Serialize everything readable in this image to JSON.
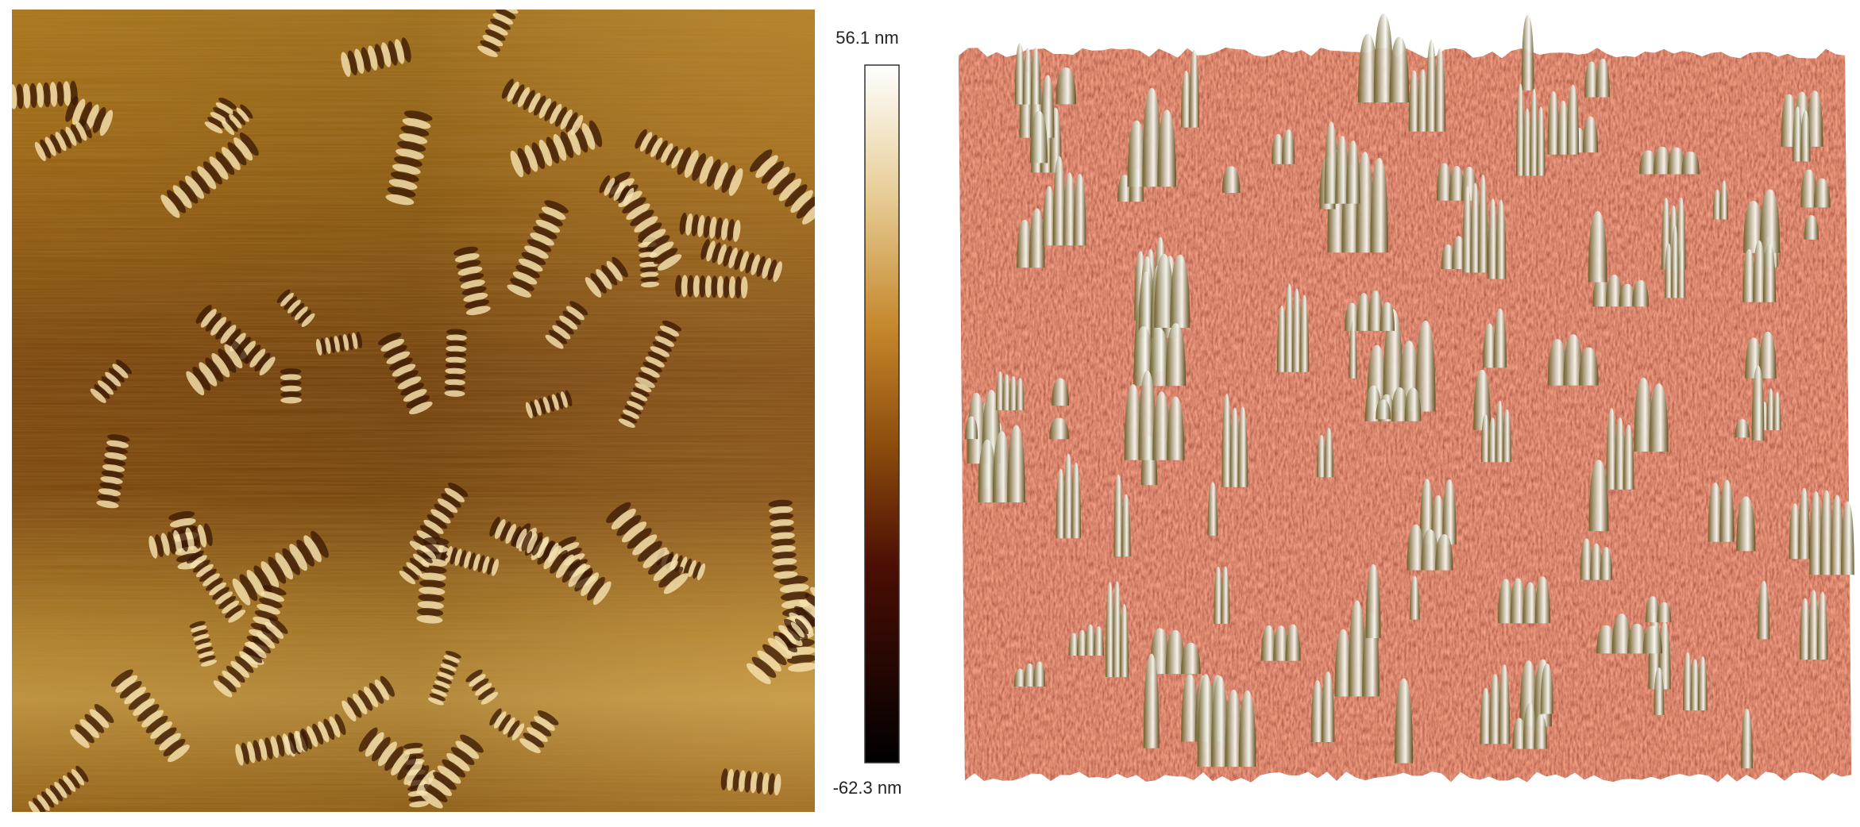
{
  "colorbar": {
    "max_label": "56.1 nm",
    "min_label": "-62.3 nm"
  }
}
